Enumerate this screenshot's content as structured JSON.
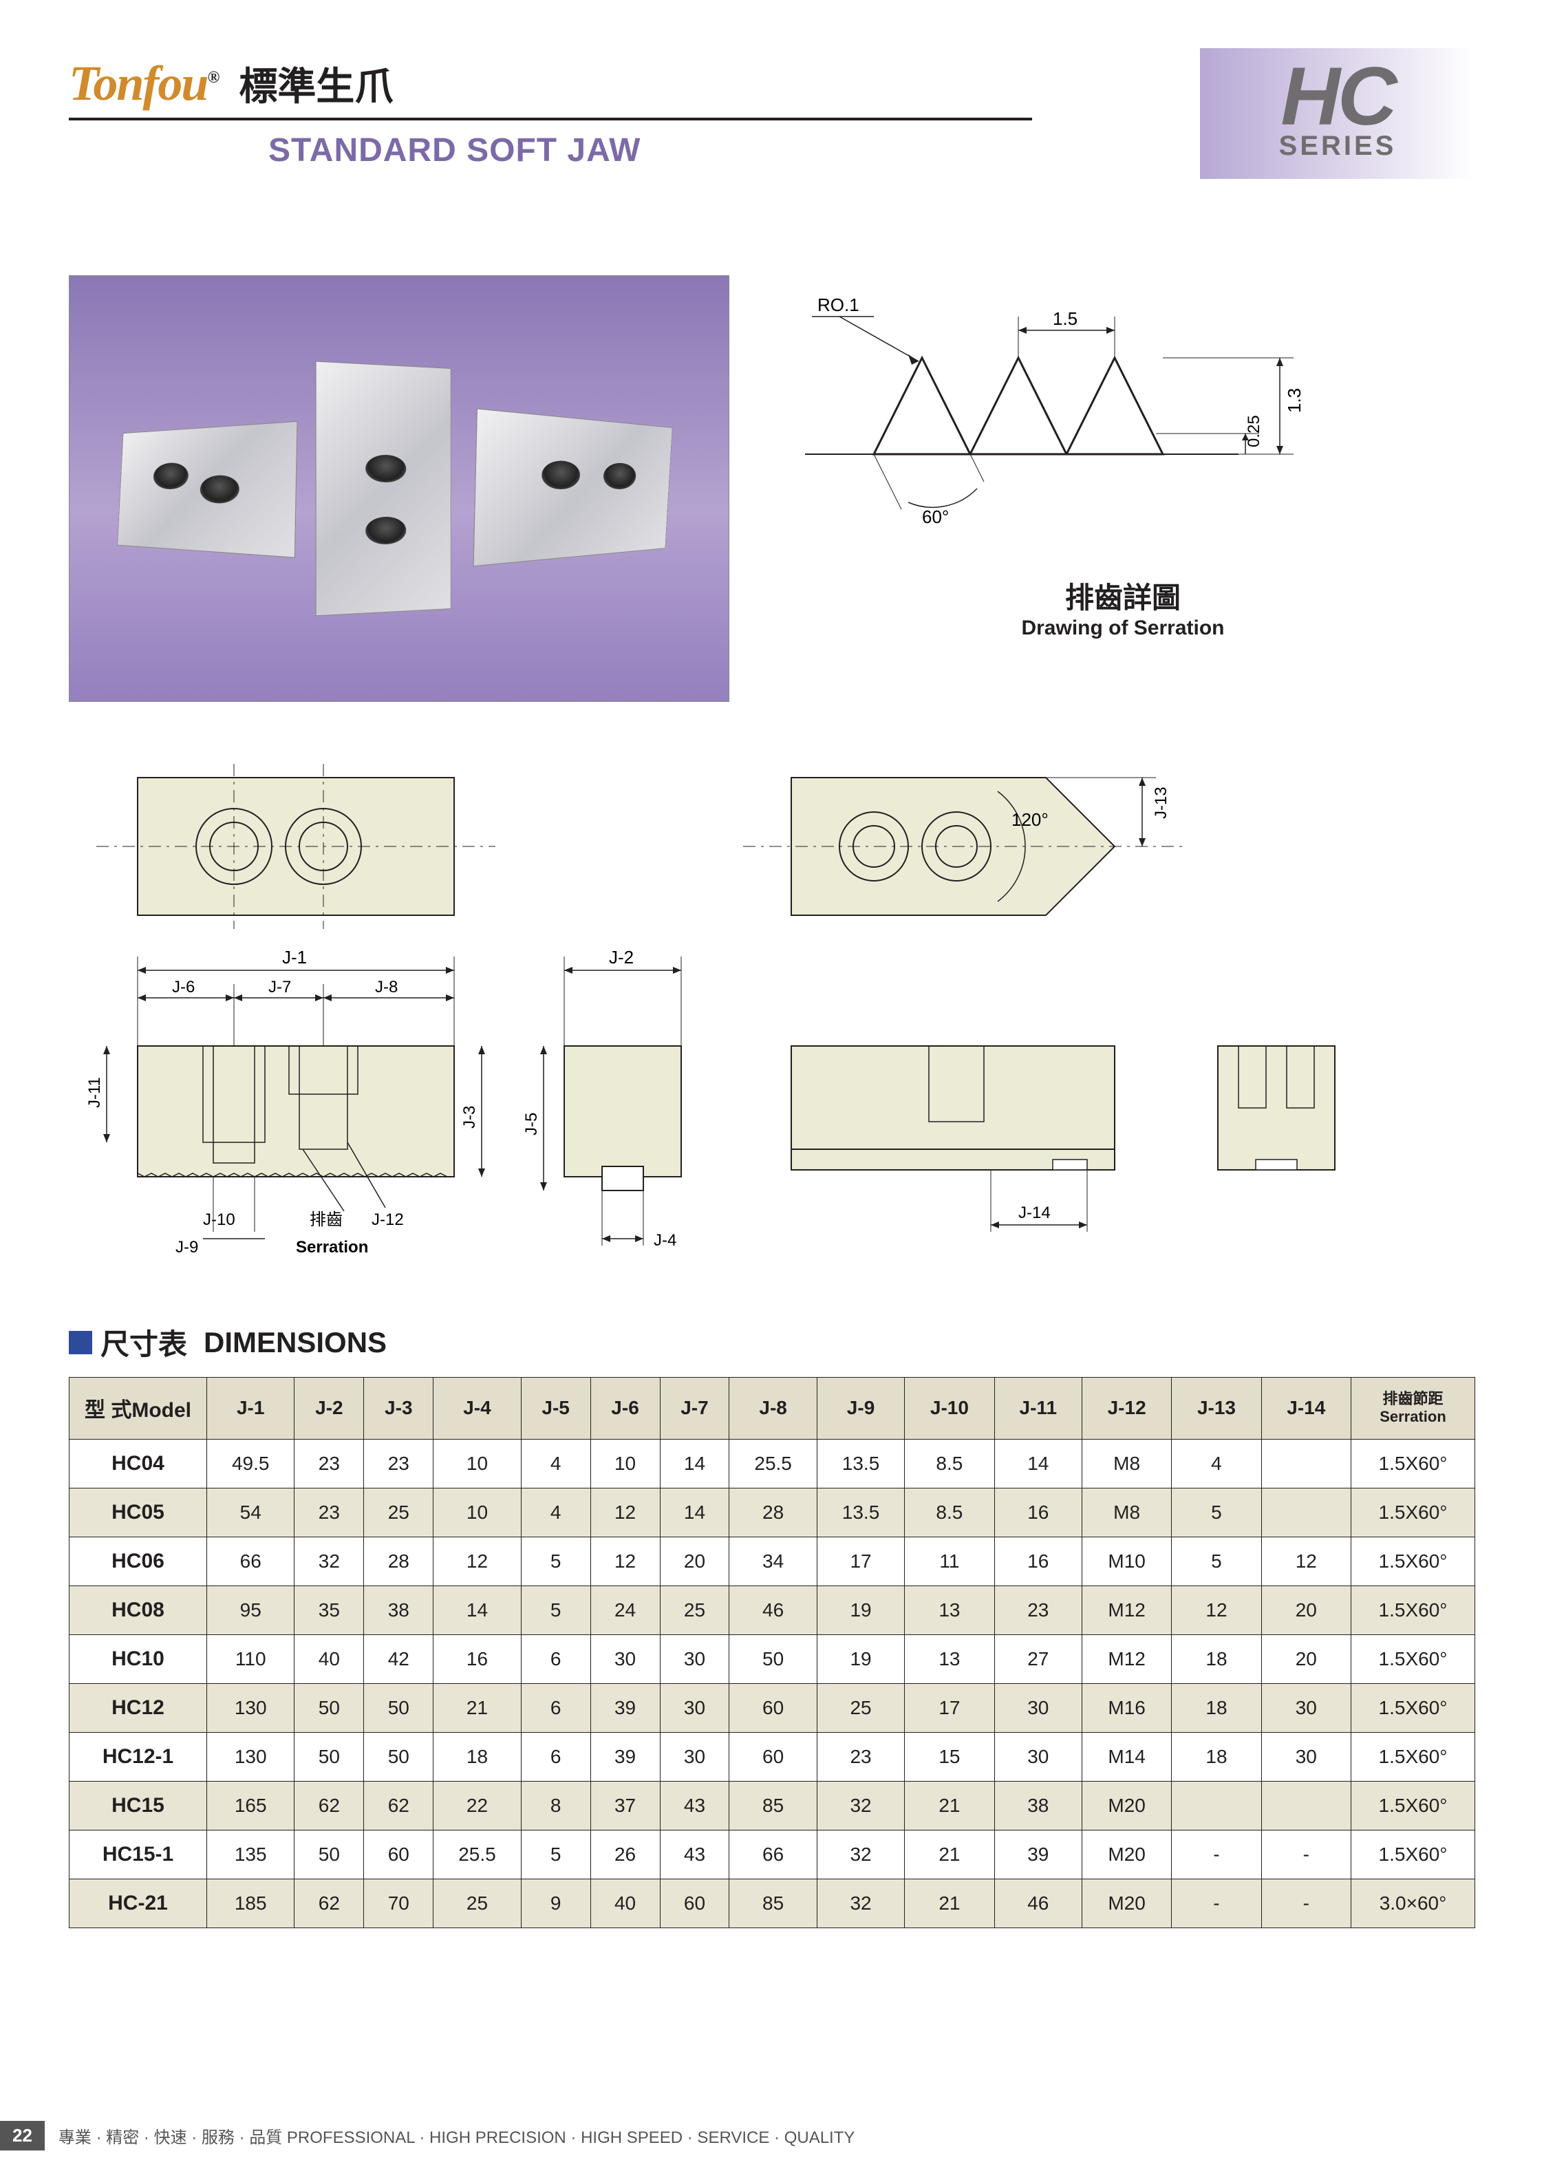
{
  "header": {
    "logo_text": "Tonfou",
    "reg_mark": "®",
    "title_cn": "標準生爪",
    "title_en": "STANDARD SOFT JAW",
    "series_code": "HC",
    "series_label": "SERIES"
  },
  "serration": {
    "ro_label": "RO.1",
    "pitch": "1.5",
    "height": "1.3",
    "depth": "0.25",
    "angle": "60°",
    "title_cn": "排齒詳圖",
    "title_en": "Drawing of Serration"
  },
  "techdraw": {
    "labels": [
      "J-1",
      "J-2",
      "J-3",
      "J-4",
      "J-5",
      "J-6",
      "J-7",
      "J-8",
      "J-9",
      "J-10",
      "J-11",
      "J-12",
      "J-13",
      "J-14"
    ],
    "angle_120": "120°",
    "serration_cn": "排齒",
    "serration_en": "Serration"
  },
  "dimensions": {
    "title_cn": "尺寸表",
    "title_en": "DIMENSIONS",
    "model_header_cn": "型  式",
    "model_header_en": "Model",
    "serration_header_cn": "排齒節距",
    "serration_header_en": "Serration",
    "cols": [
      "J-1",
      "J-2",
      "J-3",
      "J-4",
      "J-5",
      "J-6",
      "J-7",
      "J-8",
      "J-9",
      "J-10",
      "J-11",
      "J-12",
      "J-13",
      "J-14"
    ],
    "rows": [
      {
        "model": "HC04",
        "v": [
          "49.5",
          "23",
          "23",
          "10",
          "4",
          "10",
          "14",
          "25.5",
          "13.5",
          "8.5",
          "14",
          "M8",
          "4",
          "",
          "1.5X60°"
        ]
      },
      {
        "model": "HC05",
        "v": [
          "54",
          "23",
          "25",
          "10",
          "4",
          "12",
          "14",
          "28",
          "13.5",
          "8.5",
          "16",
          "M8",
          "5",
          "",
          "1.5X60°"
        ]
      },
      {
        "model": "HC06",
        "v": [
          "66",
          "32",
          "28",
          "12",
          "5",
          "12",
          "20",
          "34",
          "17",
          "11",
          "16",
          "M10",
          "5",
          "12",
          "1.5X60°"
        ]
      },
      {
        "model": "HC08",
        "v": [
          "95",
          "35",
          "38",
          "14",
          "5",
          "24",
          "25",
          "46",
          "19",
          "13",
          "23",
          "M12",
          "12",
          "20",
          "1.5X60°"
        ]
      },
      {
        "model": "HC10",
        "v": [
          "110",
          "40",
          "42",
          "16",
          "6",
          "30",
          "30",
          "50",
          "19",
          "13",
          "27",
          "M12",
          "18",
          "20",
          "1.5X60°"
        ]
      },
      {
        "model": "HC12",
        "v": [
          "130",
          "50",
          "50",
          "21",
          "6",
          "39",
          "30",
          "60",
          "25",
          "17",
          "30",
          "M16",
          "18",
          "30",
          "1.5X60°"
        ]
      },
      {
        "model": "HC12-1",
        "v": [
          "130",
          "50",
          "50",
          "18",
          "6",
          "39",
          "30",
          "60",
          "23",
          "15",
          "30",
          "M14",
          "18",
          "30",
          "1.5X60°"
        ]
      },
      {
        "model": "HC15",
        "v": [
          "165",
          "62",
          "62",
          "22",
          "8",
          "37",
          "43",
          "85",
          "32",
          "21",
          "38",
          "M20",
          "",
          "",
          "1.5X60°"
        ]
      },
      {
        "model": "HC15-1",
        "v": [
          "135",
          "50",
          "60",
          "25.5",
          "5",
          "26",
          "43",
          "66",
          "32",
          "21",
          "39",
          "M20",
          "-",
          "-",
          "1.5X60°"
        ]
      },
      {
        "model": "HC-21",
        "v": [
          "185",
          "62",
          "70",
          "25",
          "9",
          "40",
          "60",
          "85",
          "32",
          "21",
          "46",
          "M20",
          "-",
          "-",
          "3.0×60°"
        ]
      }
    ]
  },
  "footer": {
    "page": "22",
    "text": "專業 · 精密 · 快速 · 服務 · 品質  PROFESSIONAL · HIGH PRECISION · HIGH SPEED · SERVICE · QUALITY"
  },
  "colors": {
    "brand_orange": "#d18b2c",
    "brand_purple": "#7c6aa8",
    "badge_purple": "#b7a8d4",
    "badge_text": "#706d70",
    "table_header_bg": "#e2decb",
    "table_row_alt": "#e8e5d4",
    "drawing_fill": "#ecebd6",
    "blue_accent": "#2d4b9a",
    "line": "#231f20"
  }
}
